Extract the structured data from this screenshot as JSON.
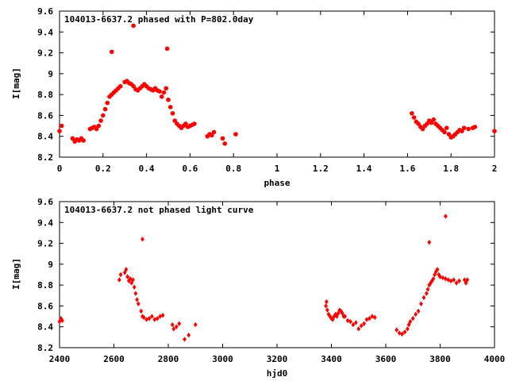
{
  "chart_data": [
    {
      "type": "scatter",
      "title": "104013-6637.2 phased with P=802.0day",
      "xlabel": "phase",
      "ylabel": "I[mag]",
      "xlim": [
        0,
        2
      ],
      "ylim": [
        9.6,
        8.2
      ],
      "y_inverted": true,
      "xticks": [
        0,
        0.2,
        0.4,
        0.6,
        0.8,
        1,
        1.2,
        1.4,
        1.6,
        1.8,
        2
      ],
      "xtick_labels": [
        "0",
        "0.2",
        "0.4",
        "0.6",
        "0.8",
        "1",
        "1.2",
        "1.4",
        "1.6",
        "1.8",
        "2"
      ],
      "yticks": [
        8.2,
        8.4,
        8.6,
        8.8,
        9,
        9.2,
        9.4,
        9.6
      ],
      "ytick_labels": [
        "8.2",
        "8.4",
        "8.6",
        "8.8",
        "9",
        "9.2",
        "9.4",
        "9.6"
      ],
      "grid": false,
      "series": [
        {
          "color": "#ff0000",
          "marker": "filled-circle",
          "points": [
            [
              0.0,
              8.45
            ],
            [
              0.01,
              8.5
            ],
            [
              0.06,
              8.38
            ],
            [
              0.07,
              8.35
            ],
            [
              0.08,
              8.37
            ],
            [
              0.09,
              8.36
            ],
            [
              0.1,
              8.38
            ],
            [
              0.11,
              8.36
            ],
            [
              0.14,
              8.47
            ],
            [
              0.15,
              8.48
            ],
            [
              0.16,
              8.49
            ],
            [
              0.17,
              8.47
            ],
            [
              0.18,
              8.5
            ],
            [
              0.19,
              8.55
            ],
            [
              0.2,
              8.6
            ],
            [
              0.21,
              8.66
            ],
            [
              0.22,
              8.72
            ],
            [
              0.23,
              8.78
            ],
            [
              0.24,
              8.8
            ],
            [
              0.25,
              8.82
            ],
            [
              0.26,
              8.84
            ],
            [
              0.27,
              8.86
            ],
            [
              0.28,
              8.88
            ],
            [
              0.3,
              8.92
            ],
            [
              0.31,
              8.93
            ],
            [
              0.32,
              8.91
            ],
            [
              0.33,
              8.9
            ],
            [
              0.34,
              8.88
            ],
            [
              0.35,
              8.85
            ],
            [
              0.36,
              8.84
            ],
            [
              0.37,
              8.86
            ],
            [
              0.38,
              8.88
            ],
            [
              0.39,
              8.9
            ],
            [
              0.4,
              8.88
            ],
            [
              0.41,
              8.86
            ],
            [
              0.42,
              8.85
            ],
            [
              0.43,
              8.84
            ],
            [
              0.44,
              8.86
            ],
            [
              0.45,
              8.84
            ],
            [
              0.46,
              8.83
            ],
            [
              0.47,
              8.78
            ],
            [
              0.48,
              8.82
            ],
            [
              0.49,
              8.86
            ],
            [
              0.5,
              8.75
            ],
            [
              0.51,
              8.68
            ],
            [
              0.52,
              8.62
            ],
            [
              0.53,
              8.55
            ],
            [
              0.54,
              8.52
            ],
            [
              0.55,
              8.5
            ],
            [
              0.56,
              8.48
            ],
            [
              0.57,
              8.5
            ],
            [
              0.58,
              8.52
            ],
            [
              0.59,
              8.49
            ],
            [
              0.6,
              8.5
            ],
            [
              0.61,
              8.51
            ],
            [
              0.62,
              8.52
            ],
            [
              0.68,
              8.4
            ],
            [
              0.69,
              8.42
            ],
            [
              0.7,
              8.41
            ],
            [
              0.71,
              8.44
            ],
            [
              0.75,
              8.38
            ],
            [
              0.76,
              8.33
            ],
            [
              0.81,
              8.42
            ],
            [
              0.24,
              9.21
            ],
            [
              0.34,
              9.46
            ],
            [
              0.495,
              9.24
            ],
            [
              1.62,
              8.62
            ],
            [
              1.63,
              8.58
            ],
            [
              1.64,
              8.54
            ],
            [
              1.65,
              8.52
            ],
            [
              1.66,
              8.49
            ],
            [
              1.67,
              8.47
            ],
            [
              1.68,
              8.5
            ],
            [
              1.69,
              8.52
            ],
            [
              1.7,
              8.55
            ],
            [
              1.71,
              8.53
            ],
            [
              1.72,
              8.56
            ],
            [
              1.73,
              8.52
            ],
            [
              1.74,
              8.5
            ],
            [
              1.75,
              8.48
            ],
            [
              1.76,
              8.46
            ],
            [
              1.77,
              8.44
            ],
            [
              1.78,
              8.48
            ],
            [
              1.79,
              8.42
            ],
            [
              1.8,
              8.39
            ],
            [
              1.81,
              8.4
            ],
            [
              1.82,
              8.42
            ],
            [
              1.83,
              8.44
            ],
            [
              1.84,
              8.46
            ],
            [
              1.85,
              8.45
            ],
            [
              1.86,
              8.48
            ],
            [
              1.88,
              8.47
            ],
            [
              1.9,
              8.48
            ],
            [
              1.91,
              8.49
            ],
            [
              2.0,
              8.45
            ]
          ]
        }
      ]
    },
    {
      "type": "scatter",
      "title": "104013-6637.2 not phased light curve",
      "xlabel": "hjd0",
      "ylabel": "I[mag]",
      "xlim": [
        2400,
        4000
      ],
      "ylim": [
        9.6,
        8.2
      ],
      "y_inverted": true,
      "xticks": [
        2400,
        2600,
        2800,
        3000,
        3200,
        3400,
        3600,
        3800,
        4000
      ],
      "xtick_labels": [
        "2400",
        "2600",
        "2800",
        "3000",
        "3200",
        "3400",
        "3600",
        "3800",
        "4000"
      ],
      "yticks": [
        8.2,
        8.4,
        8.6,
        8.8,
        9,
        9.2,
        9.4,
        9.6
      ],
      "ytick_labels": [
        "8.2",
        "8.4",
        "8.6",
        "8.8",
        "9",
        "9.2",
        "9.4",
        "9.6"
      ],
      "grid": false,
      "series": [
        {
          "color": "#ff0000",
          "marker": "filled-diamond",
          "points": [
            [
              2400,
              8.45
            ],
            [
              2405,
              8.48
            ],
            [
              2410,
              8.46
            ],
            [
              2620,
              8.85
            ],
            [
              2625,
              8.9
            ],
            [
              2640,
              8.92
            ],
            [
              2645,
              8.95
            ],
            [
              2650,
              8.88
            ],
            [
              2655,
              8.84
            ],
            [
              2660,
              8.86
            ],
            [
              2665,
              8.82
            ],
            [
              2670,
              8.85
            ],
            [
              2675,
              8.78
            ],
            [
              2680,
              8.72
            ],
            [
              2685,
              8.66
            ],
            [
              2690,
              8.62
            ],
            [
              2700,
              8.55
            ],
            [
              2705,
              8.5
            ],
            [
              2710,
              8.49
            ],
            [
              2720,
              8.47
            ],
            [
              2730,
              8.48
            ],
            [
              2740,
              8.5
            ],
            [
              2750,
              8.47
            ],
            [
              2760,
              8.48
            ],
            [
              2770,
              8.5
            ],
            [
              2780,
              8.51
            ],
            [
              2705,
              9.24
            ],
            [
              2815,
              8.42
            ],
            [
              2820,
              8.38
            ],
            [
              2830,
              8.4
            ],
            [
              2840,
              8.43
            ],
            [
              2860,
              8.28
            ],
            [
              2875,
              8.32
            ],
            [
              2900,
              8.42
            ],
            [
              3380,
              8.6
            ],
            [
              3382,
              8.64
            ],
            [
              3385,
              8.56
            ],
            [
              3390,
              8.52
            ],
            [
              3395,
              8.5
            ],
            [
              3400,
              8.48
            ],
            [
              3405,
              8.47
            ],
            [
              3410,
              8.5
            ],
            [
              3415,
              8.52
            ],
            [
              3420,
              8.5
            ],
            [
              3425,
              8.53
            ],
            [
              3430,
              8.56
            ],
            [
              3435,
              8.55
            ],
            [
              3440,
              8.53
            ],
            [
              3445,
              8.5
            ],
            [
              3450,
              8.5
            ],
            [
              3460,
              8.46
            ],
            [
              3470,
              8.45
            ],
            [
              3480,
              8.42
            ],
            [
              3490,
              8.44
            ],
            [
              3500,
              8.38
            ],
            [
              3510,
              8.41
            ],
            [
              3520,
              8.43
            ],
            [
              3530,
              8.47
            ],
            [
              3540,
              8.48
            ],
            [
              3550,
              8.5
            ],
            [
              3560,
              8.49
            ],
            [
              3640,
              8.37
            ],
            [
              3650,
              8.34
            ],
            [
              3660,
              8.33
            ],
            [
              3670,
              8.35
            ],
            [
              3680,
              8.38
            ],
            [
              3685,
              8.42
            ],
            [
              3690,
              8.45
            ],
            [
              3700,
              8.48
            ],
            [
              3710,
              8.52
            ],
            [
              3720,
              8.55
            ],
            [
              3730,
              8.62
            ],
            [
              3740,
              8.68
            ],
            [
              3750,
              8.72
            ],
            [
              3755,
              8.76
            ],
            [
              3760,
              8.8
            ],
            [
              3765,
              8.82
            ],
            [
              3770,
              8.84
            ],
            [
              3775,
              8.86
            ],
            [
              3780,
              8.9
            ],
            [
              3785,
              8.93
            ],
            [
              3790,
              8.95
            ],
            [
              3795,
              8.9
            ],
            [
              3800,
              8.88
            ],
            [
              3810,
              8.87
            ],
            [
              3820,
              8.86
            ],
            [
              3830,
              8.85
            ],
            [
              3840,
              8.84
            ],
            [
              3850,
              8.85
            ],
            [
              3860,
              8.82
            ],
            [
              3870,
              8.84
            ],
            [
              3890,
              8.85
            ],
            [
              3895,
              8.82
            ],
            [
              3900,
              8.85
            ],
            [
              3760,
              9.21
            ],
            [
              3820,
              9.46
            ]
          ]
        }
      ]
    }
  ]
}
